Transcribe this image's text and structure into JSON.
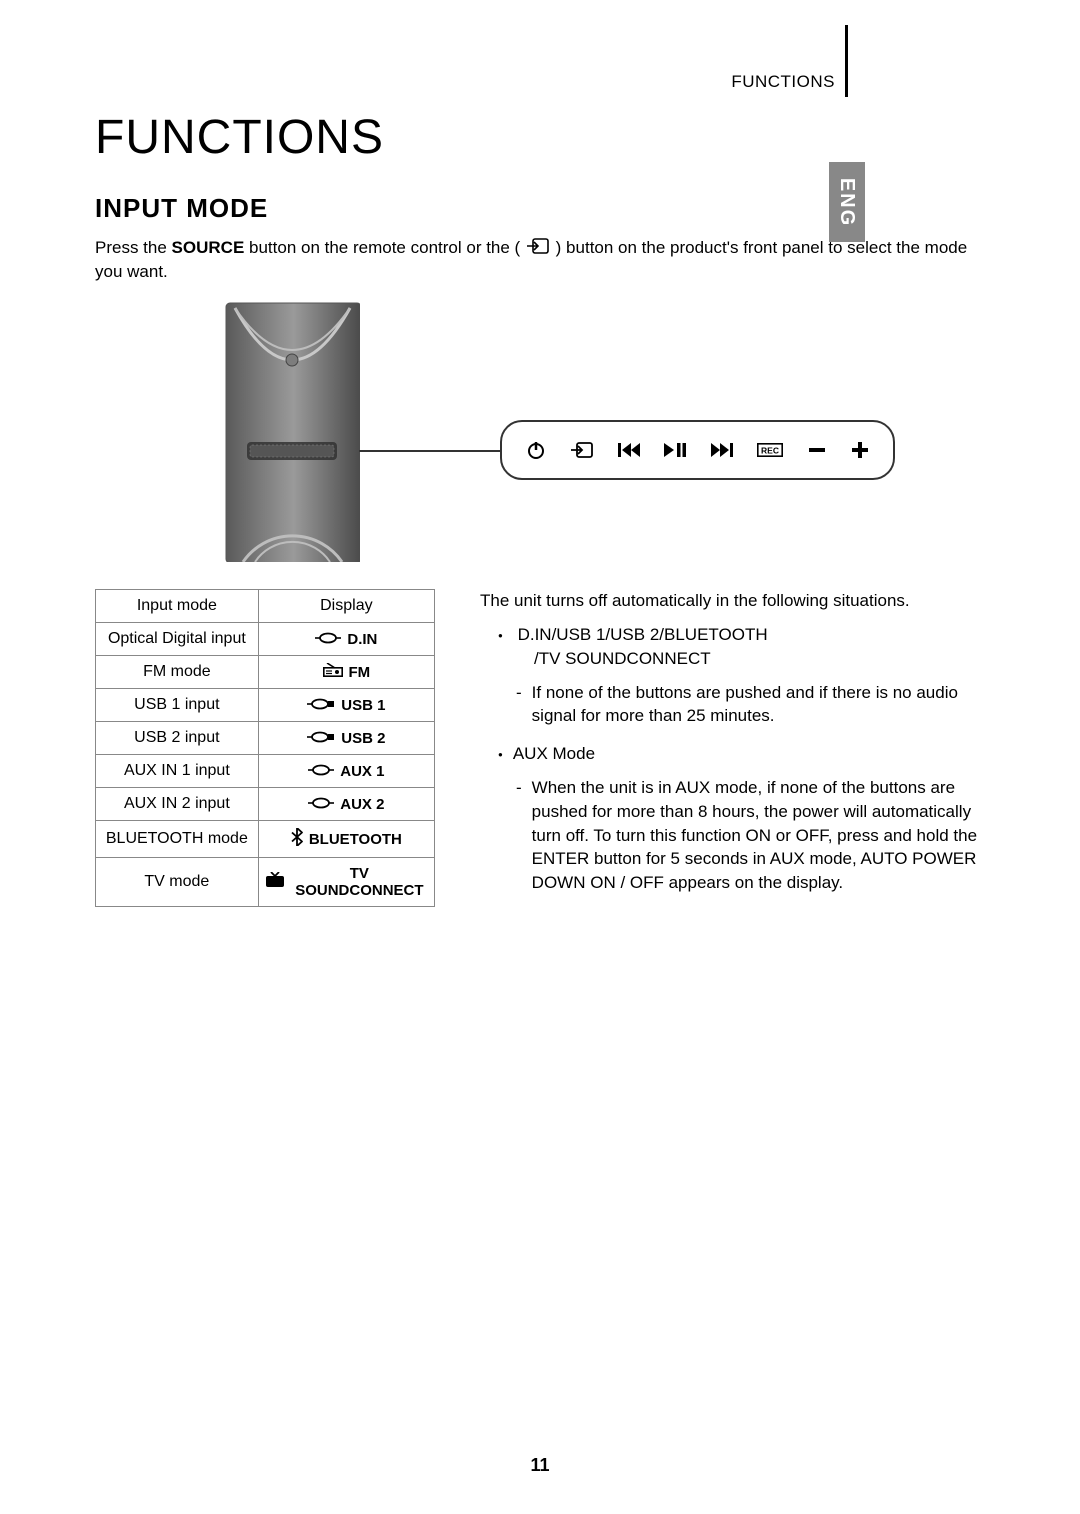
{
  "header": {
    "label": "FUNCTIONS",
    "lang_tab": "ENG"
  },
  "title": "FUNCTIONS",
  "section_title": "INPUT MODE",
  "intro": {
    "prefix": "Press the ",
    "bold": "SOURCE",
    "mid": " button on the remote control or the ( ",
    "suffix": " ) button on the product's front panel to select the mode you want."
  },
  "table": {
    "headers": {
      "col1": "Input mode",
      "col2": "Display"
    },
    "rows": [
      {
        "mode": "Optical Digital input",
        "display": "D.IN",
        "icon": "jack"
      },
      {
        "mode": "FM mode",
        "display": "FM",
        "icon": "radio"
      },
      {
        "mode": "USB 1 input",
        "display": "USB 1",
        "icon": "usb"
      },
      {
        "mode": "USB 2 input",
        "display": "USB 2",
        "icon": "usb"
      },
      {
        "mode": "AUX IN 1 input",
        "display": "AUX 1",
        "icon": "jack"
      },
      {
        "mode": "AUX IN 2 input",
        "display": "AUX 2",
        "icon": "jack"
      },
      {
        "mode": "BLUETOOTH mode",
        "display": "BLUETOOTH",
        "icon": "bt"
      },
      {
        "mode": "TV mode",
        "display": "TV SOUNDCONNECT",
        "icon": "tv"
      }
    ]
  },
  "right": {
    "auto_off_intro": "The unit turns off automatically in the following situations.",
    "mode_group_line1": "D.IN/USB 1/USB 2/BLUETOOTH",
    "mode_group_line2": "/TV SOUNDCONNECT",
    "condition1": "If none of the buttons are pushed and if there is no audio signal for more than 25 minutes.",
    "aux_heading": "AUX Mode",
    "aux_condition": "When the unit is in AUX mode, if none of the buttons are pushed for more than 8 hours, the power will automatically turn off. To turn this function ON or OFF, press and hold the ENTER button for 5 seconds in AUX mode, AUTO POWER DOWN ON / OFF appears on the display."
  },
  "page_number": "11",
  "colors": {
    "border": "#888888",
    "tab_bg": "#888888",
    "icon": "#000000"
  }
}
